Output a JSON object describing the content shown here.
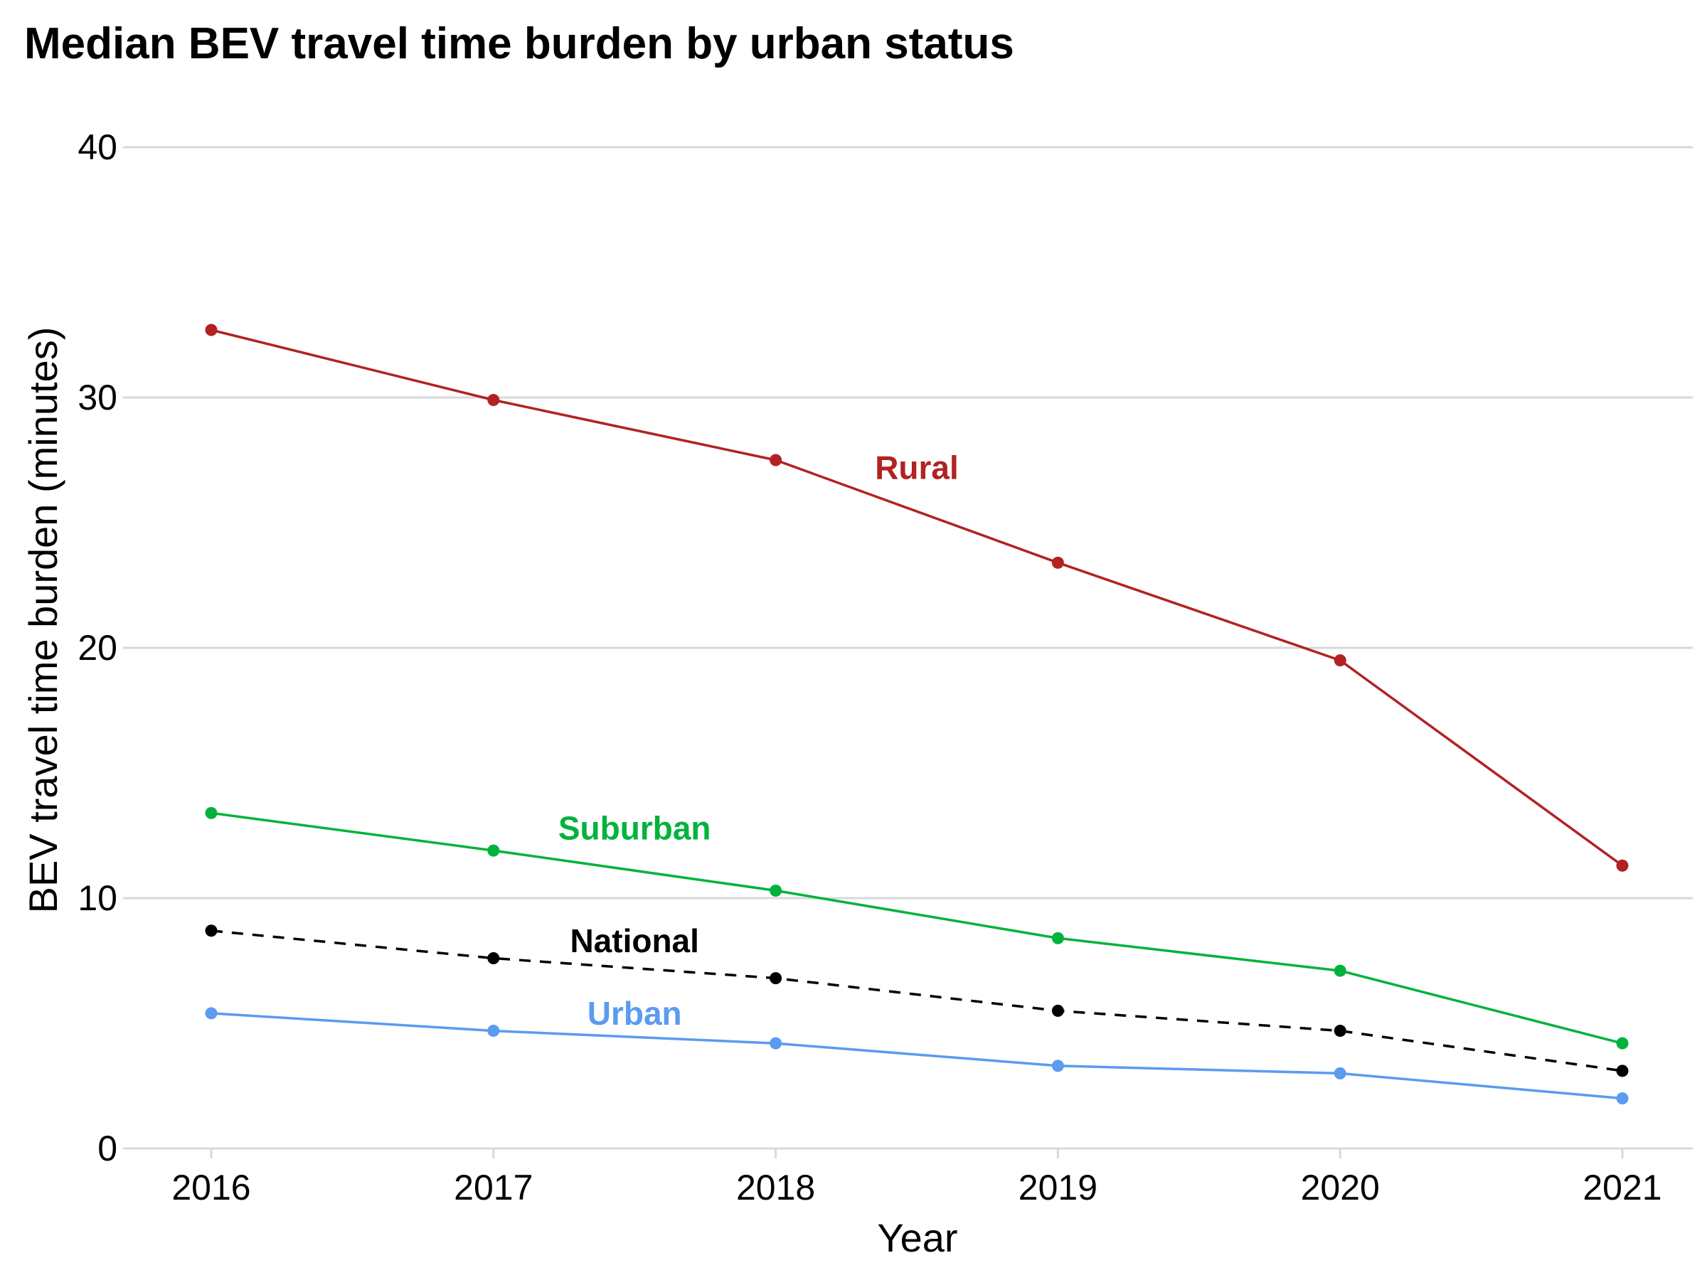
{
  "chart_data": {
    "type": "line",
    "title": "Median BEV travel time burden by urban status",
    "xlabel": "Year",
    "ylabel": "BEV travel time burden (minutes)",
    "x": [
      2016,
      2017,
      2018,
      2019,
      2020,
      2021
    ],
    "x_tick_labels": [
      "2016",
      "2017",
      "2018",
      "2019",
      "2020",
      "2021"
    ],
    "ylim": [
      0,
      40
    ],
    "y_ticks": [
      0,
      10,
      20,
      30,
      40
    ],
    "y_tick_labels": [
      "0",
      "10",
      "20",
      "30",
      "40"
    ],
    "grid": "horizontal",
    "legend": "none (direct labels)",
    "series": [
      {
        "name": "Rural",
        "color": "#b22222",
        "dashed": false,
        "values": [
          32.7,
          29.9,
          27.5,
          23.4,
          19.5,
          11.3
        ],
        "label_at": {
          "x": 2018.5,
          "y": 27.2
        }
      },
      {
        "name": "Suburban",
        "color": "#00b33c",
        "dashed": false,
        "values": [
          13.4,
          11.9,
          10.3,
          8.4,
          7.1,
          4.2
        ],
        "label_at": {
          "x": 2017.5,
          "y": 12.8
        }
      },
      {
        "name": "National",
        "color": "#000000",
        "dashed": true,
        "values": [
          8.7,
          7.6,
          6.8,
          5.5,
          4.7,
          3.1
        ],
        "label_at": {
          "x": 2017.5,
          "y": 8.3
        }
      },
      {
        "name": "Urban",
        "color": "#5b9bf0",
        "dashed": false,
        "values": [
          5.4,
          4.7,
          4.2,
          3.3,
          3.0,
          2.0
        ],
        "label_at": {
          "x": 2017.5,
          "y": 5.4
        }
      }
    ]
  }
}
